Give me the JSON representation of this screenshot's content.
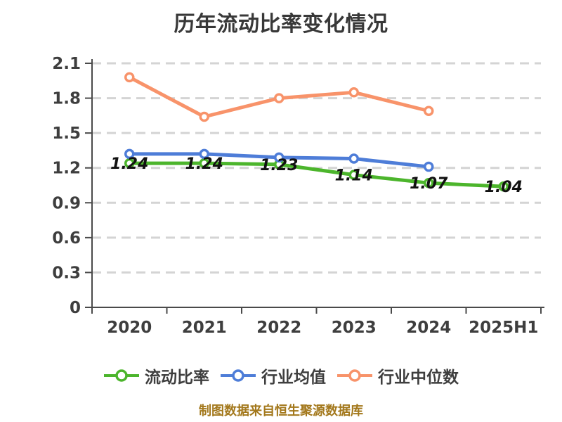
{
  "page": {
    "background": "#ffffff"
  },
  "footer": {
    "note": "制图数据来自恒生聚源数据库",
    "color": "#a3781c"
  },
  "chart_data": {
    "type": "line",
    "title": "历年流动比率变化情况",
    "categories": [
      "2020",
      "2021",
      "2022",
      "2023",
      "2024",
      "2025H1"
    ],
    "ytick_labels": [
      "2.1",
      "1.8",
      "1.5",
      "1.2",
      "0.9",
      "0.6",
      "0.3",
      "0"
    ],
    "ylim": [
      0,
      2.1
    ],
    "ytick_step": 0.3,
    "grid": "horizontal-dashed",
    "legend_position": "bottom",
    "marker_style": "circle-white-fill",
    "series": [
      {
        "name": "流动比率",
        "color": "#4cb52c",
        "values": [
          1.24,
          1.24,
          1.23,
          1.14,
          1.07,
          1.04
        ],
        "value_labels": [
          "1.24",
          "1.24",
          "1.23",
          "1.14",
          "1.07",
          "1.04"
        ]
      },
      {
        "name": "行业均值",
        "color": "#4e7dd8",
        "values": [
          1.32,
          1.32,
          1.29,
          1.28,
          1.21
        ],
        "value_labels": []
      },
      {
        "name": "行业中位数",
        "color": "#f8936a",
        "values": [
          1.98,
          1.64,
          1.8,
          1.85,
          1.69
        ],
        "value_labels": []
      }
    ],
    "colors": {
      "axis": "#4a4a4a",
      "grid": "#d4d4d4",
      "tick_text": "#3e3e3e",
      "value_label_text": "#111111",
      "title_text": "#383838"
    }
  }
}
